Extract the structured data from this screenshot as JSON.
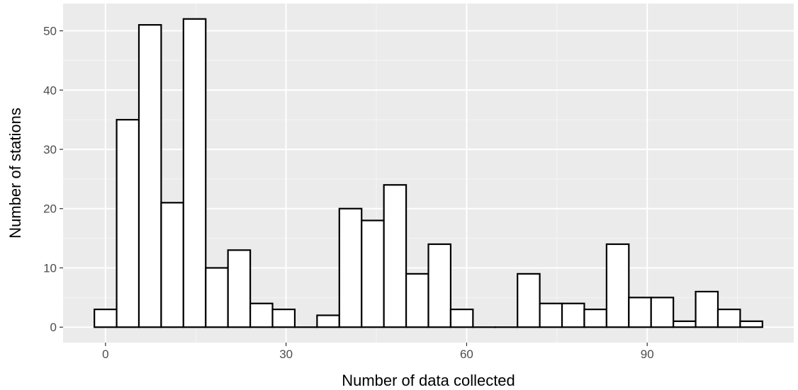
{
  "chart_data": {
    "type": "bar",
    "subtype": "histogram",
    "xlabel": "Number of data collected",
    "ylabel": "Number of stations",
    "bin_width": 3.7,
    "bins": [
      {
        "x": 0.0,
        "count": 3
      },
      {
        "x": 3.7,
        "count": 35
      },
      {
        "x": 7.4,
        "count": 51
      },
      {
        "x": 11.1,
        "count": 21
      },
      {
        "x": 14.8,
        "count": 52
      },
      {
        "x": 18.5,
        "count": 10
      },
      {
        "x": 22.2,
        "count": 13
      },
      {
        "x": 25.9,
        "count": 4
      },
      {
        "x": 29.6,
        "count": 3
      },
      {
        "x": 33.3,
        "count": 0
      },
      {
        "x": 37.0,
        "count": 2
      },
      {
        "x": 40.7,
        "count": 20
      },
      {
        "x": 44.4,
        "count": 18
      },
      {
        "x": 48.1,
        "count": 24
      },
      {
        "x": 51.8,
        "count": 9
      },
      {
        "x": 55.5,
        "count": 14
      },
      {
        "x": 59.2,
        "count": 3
      },
      {
        "x": 62.9,
        "count": 0
      },
      {
        "x": 66.6,
        "count": 0
      },
      {
        "x": 70.3,
        "count": 9
      },
      {
        "x": 74.0,
        "count": 4
      },
      {
        "x": 77.7,
        "count": 4
      },
      {
        "x": 81.4,
        "count": 3
      },
      {
        "x": 85.1,
        "count": 14
      },
      {
        "x": 88.8,
        "count": 5
      },
      {
        "x": 92.5,
        "count": 5
      },
      {
        "x": 96.2,
        "count": 1
      },
      {
        "x": 99.9,
        "count": 6
      },
      {
        "x": 103.6,
        "count": 3
      },
      {
        "x": 107.3,
        "count": 1
      }
    ],
    "xlim": [
      -7.05,
      114.35
    ],
    "ylim": [
      -2.6,
      54.6
    ],
    "x_ticks": [
      {
        "value": 0,
        "label": "0"
      },
      {
        "value": 30,
        "label": "30"
      },
      {
        "value": 60,
        "label": "60"
      },
      {
        "value": 90,
        "label": "90"
      }
    ],
    "y_ticks": [
      {
        "value": 0,
        "label": "0"
      },
      {
        "value": 10,
        "label": "10"
      },
      {
        "value": 20,
        "label": "20"
      },
      {
        "value": 30,
        "label": "30"
      },
      {
        "value": 40,
        "label": "40"
      },
      {
        "value": 50,
        "label": "50"
      }
    ],
    "grid": true,
    "colors": {
      "panel_background": "#ebebeb",
      "grid_major": "#ffffff",
      "grid_minor": "#f5f5f5",
      "bar_fill": "#ffffff",
      "bar_outline": "#000000",
      "tick_label": "#4d4d4d",
      "axis_title": "#000000",
      "tick_mark": "#333333"
    }
  }
}
